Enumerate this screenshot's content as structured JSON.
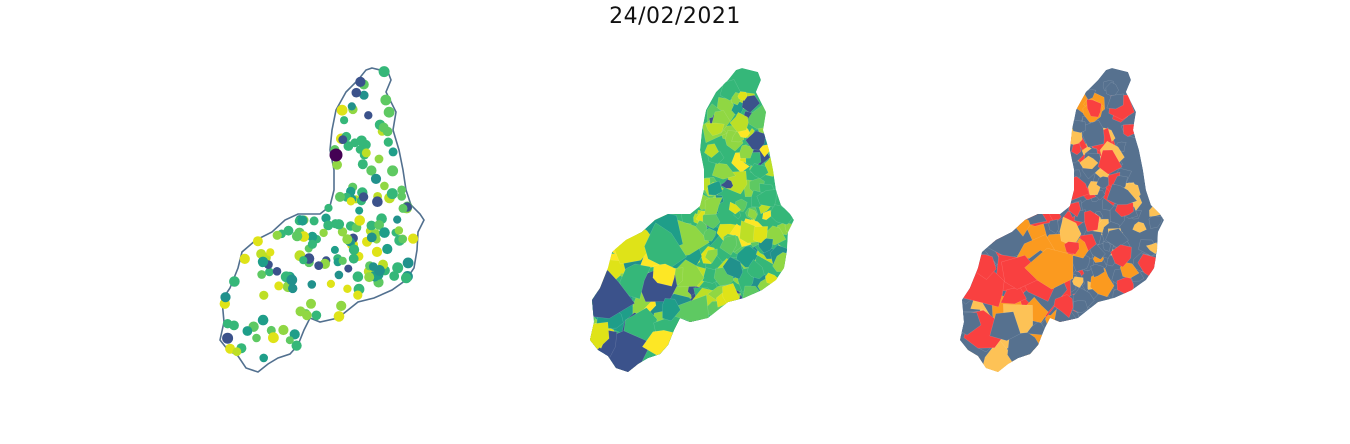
{
  "title": "24/02/2021",
  "palette": {
    "viridis": [
      "#440154",
      "#3b528b",
      "#21918c",
      "#1f9e89",
      "#35b779",
      "#5ec962",
      "#90d743",
      "#bddf26",
      "#dfe318",
      "#fde725"
    ],
    "risk": [
      "#56718f",
      "#fdc256",
      "#fb9a1f",
      "#f94040"
    ],
    "outline": "#52708f"
  },
  "maps": [
    {
      "name": "points-map",
      "type": "point-symbols"
    },
    {
      "name": "choropleth-viridis-map",
      "type": "choropleth"
    },
    {
      "name": "choropleth-category-map",
      "type": "choropleth"
    }
  ]
}
